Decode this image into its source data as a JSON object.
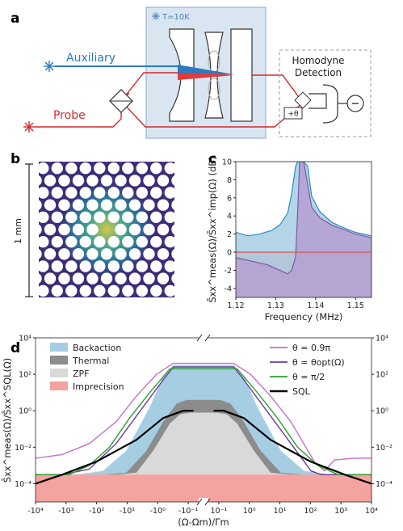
{
  "panels": {
    "a": "a",
    "b": "b",
    "c": "c",
    "d": "d"
  },
  "setup": {
    "temperature": "T=10K",
    "auxiliary": "Auxiliary",
    "probe": "Probe",
    "homodyne": "Homodyne",
    "detection": "Detection",
    "phase": "+θ",
    "colors": {
      "auxiliary": "#2b7bbf",
      "probe": "#d62728",
      "cryo_bg": "#d9e6f2"
    }
  },
  "image_b": {
    "scale_label": "1 mm"
  },
  "chart_data": [
    {
      "type": "area",
      "panel": "c",
      "xlabel": "Frequency (MHz)",
      "ylabel": "S̄xx^meas(Ω)/S̄xx^imp(Ω) (dB)",
      "xlim": [
        1.12,
        1.154
      ],
      "ylim": [
        -5,
        10
      ],
      "xticks": [
        "1.12",
        "1.13",
        "1.14",
        "1.15"
      ],
      "yticks": [
        "-4",
        "-2",
        "0",
        "2",
        "4",
        "6",
        "8",
        "10"
      ],
      "series": [
        {
          "color": "#2b8cbe",
          "x": [
            1.12,
            1.123,
            1.126,
            1.129,
            1.131,
            1.133,
            1.134,
            1.135,
            1.1355,
            1.136,
            1.137,
            1.138,
            1.139,
            1.141,
            1.144,
            1.147,
            1.15,
            1.154
          ],
          "y": [
            2.2,
            1.8,
            2.0,
            2.4,
            3.0,
            4.3,
            6.5,
            9.5,
            10,
            10,
            10,
            9.5,
            6.2,
            4.5,
            3.3,
            2.7,
            2.2,
            1.8
          ]
        },
        {
          "color": "#7e57a6",
          "x": [
            1.12,
            1.124,
            1.128,
            1.13,
            1.132,
            1.133,
            1.134,
            1.135,
            1.1355,
            1.136,
            1.137,
            1.138,
            1.139,
            1.141,
            1.144,
            1.147,
            1.15,
            1.154
          ],
          "y": [
            -0.6,
            -1.0,
            -1.4,
            -1.8,
            -2.2,
            -2.4,
            -2.0,
            -0.5,
            4.5,
            10,
            10,
            7.5,
            5.0,
            3.8,
            3.0,
            2.5,
            2.0,
            1.6
          ]
        },
        {
          "color": "#d9534f",
          "x": [
            1.12,
            1.154
          ],
          "y": [
            0,
            0
          ]
        }
      ]
    },
    {
      "type": "area",
      "panel": "d",
      "xlabel": "(Ω-Ωm)/Γm",
      "ylabel": "S̄xx^meas(Ω)/S̄xx^SQL(Ω)",
      "yscale": "log",
      "ylim": [
        1e-05,
        10000.0
      ],
      "xticks": [
        "-10⁴",
        "-10³",
        "-10²",
        "-10¹",
        "-10⁰",
        "-10⁻¹",
        "10⁻¹",
        "10⁰",
        "10¹",
        "10²",
        "10³",
        "10⁴"
      ],
      "yticks": [
        "10⁻⁴",
        "10⁻²",
        "10⁰",
        "10²",
        "10⁴"
      ],
      "legend_left": [
        {
          "label": "Backaction",
          "color": "#a6cee3"
        },
        {
          "label": "Thermal",
          "color": "#8c8c8c"
        },
        {
          "label": "ZPF",
          "color": "#d9d9d9"
        },
        {
          "label": "Imprecision",
          "color": "#f4a3a0"
        }
      ],
      "legend_right": [
        {
          "label": "θ = 0.9π",
          "color": "#c66fc6"
        },
        {
          "label": "θ = θopt(Ω)",
          "color": "#6a3d9a"
        },
        {
          "label": "θ = π/2",
          "color": "#2ca02c"
        },
        {
          "label": "SQL",
          "color": "#000000"
        }
      ]
    }
  ]
}
